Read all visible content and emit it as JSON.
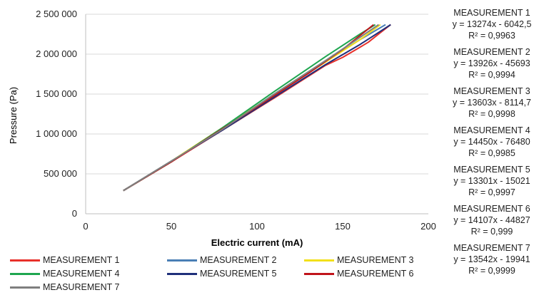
{
  "chart_data": {
    "type": "line",
    "xlabel": "Electric current (mA)",
    "ylabel": "Pressure (Pa)",
    "xlim": [
      0,
      200
    ],
    "ylim": [
      0,
      2500000
    ],
    "x_ticks": [
      "0",
      "50",
      "100",
      "150",
      "200"
    ],
    "y_ticks": [
      "0",
      "500 000",
      "1 000 000",
      "1 500 000",
      "2 000 000",
      "2 500 000"
    ],
    "grid": "horizontal",
    "legend_position": "bottom",
    "series": [
      {
        "name": "MEASUREMENT 1",
        "color": "#e8302a",
        "x": [
          22,
          50,
          80,
          110,
          140,
          150,
          158,
          165,
          172,
          178
        ],
        "y": [
          290000,
          650000,
          1050000,
          1450000,
          1860000,
          1960000,
          2060000,
          2150000,
          2270000,
          2370000
        ]
      },
      {
        "name": "MEASUREMENT 2",
        "color": "#4a7fb5",
        "x": [
          22,
          50,
          80,
          110,
          140,
          160,
          175
        ],
        "y": [
          290000,
          660000,
          1060000,
          1480000,
          1910000,
          2180000,
          2370000
        ]
      },
      {
        "name": "MEASUREMENT 3",
        "color": "#f2e01a",
        "x": [
          22,
          50,
          80,
          110,
          140,
          160,
          172
        ],
        "y": [
          290000,
          660000,
          1080000,
          1490000,
          1900000,
          2180000,
          2370000
        ]
      },
      {
        "name": "MEASUREMENT 4",
        "color": "#1ea64f",
        "x": [
          22,
          50,
          80,
          110,
          140,
          160,
          169
        ],
        "y": [
          290000,
          650000,
          1080000,
          1530000,
          1970000,
          2250000,
          2370000
        ]
      },
      {
        "name": "MEASUREMENT 5",
        "color": "#1f2f7a",
        "x": [
          22,
          50,
          80,
          110,
          140,
          160,
          178
        ],
        "y": [
          290000,
          660000,
          1050000,
          1460000,
          1870000,
          2120000,
          2370000
        ]
      },
      {
        "name": "MEASUREMENT 6",
        "color": "#c0141b",
        "x": [
          22,
          50,
          70,
          100,
          130,
          150,
          168
        ],
        "y": [
          290000,
          650000,
          930000,
          1340000,
          1760000,
          2060000,
          2370000
        ]
      },
      {
        "name": "MEASUREMENT 7",
        "color": "#7f7f7f",
        "x": [
          22,
          50,
          80,
          110,
          140,
          160,
          171
        ],
        "y": [
          290000,
          660000,
          1060000,
          1500000,
          1920000,
          2210000,
          2370000
        ]
      }
    ],
    "trendlines": [
      {
        "name": "MEASUREMENT 1",
        "equation": "y = 13274x - 6042,5",
        "r2": "R² = 0,9963"
      },
      {
        "name": "MEASUREMENT 2",
        "equation": "y = 13926x - 45693",
        "r2": "R² = 0,9994"
      },
      {
        "name": "MEASUREMENT 3",
        "equation": "y = 13603x - 8114,7",
        "r2": "R² = 0,9998"
      },
      {
        "name": "MEASUREMENT 4",
        "equation": "y = 14450x - 76480",
        "r2": "R² = 0,9985"
      },
      {
        "name": "MEASUREMENT 5",
        "equation": "y = 13301x - 15021",
        "r2": "R² = 0,9997"
      },
      {
        "name": "MEASUREMENT 6",
        "equation": "y = 14107x - 44827",
        "r2": "R² = 0,999"
      },
      {
        "name": "MEASUREMENT 7",
        "equation": "y = 13542x - 19941",
        "r2": "R² = 0,9999"
      }
    ]
  }
}
